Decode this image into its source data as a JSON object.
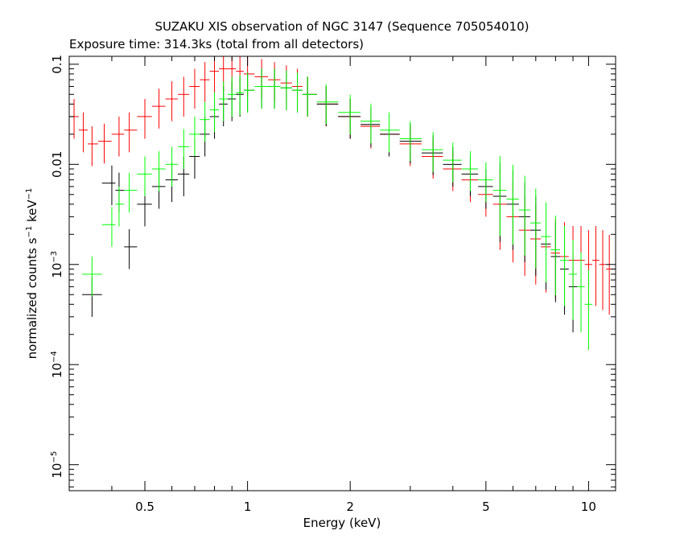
{
  "chart_data": {
    "type": "scatter",
    "title": "SUZAKU XIS observation of NGC 3147 (Sequence 705054010)",
    "subtitle": "Exposure time: 314.3ks (total from all detectors)",
    "xlabel": "Energy (keV)",
    "ylabel": "normalized counts s",
    "ylabel_sup1": "−1",
    "ylabel_mid": " keV",
    "ylabel_sup2": "−1",
    "x_scale": "log",
    "y_scale": "log",
    "xlim": [
      0.3,
      12
    ],
    "ylim": [
      5.5e-06,
      0.12
    ],
    "x_ticks": [
      {
        "value": 0.5,
        "label": "0.5"
      },
      {
        "value": 1,
        "label": "1"
      },
      {
        "value": 2,
        "label": "2"
      },
      {
        "value": 5,
        "label": "5"
      },
      {
        "value": 10,
        "label": "10"
      }
    ],
    "y_ticks": [
      {
        "value": 0.1,
        "base": "0.1",
        "exp": ""
      },
      {
        "value": 0.01,
        "base": "0.01",
        "exp": ""
      },
      {
        "value": 0.001,
        "base": "10",
        "exp": "−3"
      },
      {
        "value": 0.0001,
        "base": "10",
        "exp": "−4"
      },
      {
        "value": 1e-05,
        "base": "10",
        "exp": "−5"
      }
    ],
    "grid": false,
    "legend": "none",
    "series": [
      {
        "color": "#ff0000",
        "x": [
          0.31,
          0.33,
          0.35,
          0.38,
          0.42,
          0.45,
          0.5,
          0.55,
          0.6,
          0.65,
          0.7,
          0.75,
          0.8,
          0.85,
          0.9,
          0.95,
          1.0,
          1.1,
          1.2,
          1.3,
          1.4,
          1.5,
          1.7,
          2.0,
          2.3,
          2.6,
          3.0,
          3.5,
          4.0,
          4.5,
          5.0,
          5.5,
          6.0,
          6.5,
          7.0,
          7.5,
          8.0,
          8.5,
          9.0,
          9.5,
          10.0,
          10.5,
          11.0,
          11.5,
          12.0
        ],
        "y": [
          0.03,
          0.022,
          0.016,
          0.017,
          0.02,
          0.022,
          0.03,
          0.038,
          0.045,
          0.05,
          0.06,
          0.07,
          0.085,
          0.09,
          0.09,
          0.085,
          0.08,
          0.075,
          0.07,
          0.065,
          0.06,
          0.05,
          0.04,
          0.03,
          0.024,
          0.02,
          0.016,
          0.012,
          0.009,
          0.007,
          0.005,
          0.004,
          0.003,
          0.0022,
          0.0018,
          0.0015,
          0.0013,
          0.0012,
          0.0011,
          0.0011,
          0.001,
          0.0011,
          0.001,
          0.0009,
          0.0009
        ]
      },
      {
        "color": "#000000",
        "x": [
          0.35,
          0.4,
          0.42,
          0.45,
          0.5,
          0.55,
          0.6,
          0.65,
          0.7,
          0.75,
          0.8,
          0.85,
          0.9,
          0.95,
          1.0,
          1.1,
          1.2,
          1.3,
          1.4,
          1.5,
          1.7,
          2.0,
          2.3,
          2.6,
          3.0,
          3.5,
          4.0,
          4.5,
          5.0,
          5.5,
          6.0,
          6.5,
          7.0,
          7.5,
          8.0,
          8.5,
          9.0
        ],
        "y": [
          0.0005,
          0.0065,
          0.0055,
          0.0015,
          0.004,
          0.006,
          0.007,
          0.008,
          0.012,
          0.02,
          0.03,
          0.04,
          0.045,
          0.05,
          0.055,
          0.06,
          0.06,
          0.058,
          0.055,
          0.05,
          0.04,
          0.03,
          0.025,
          0.02,
          0.017,
          0.013,
          0.01,
          0.008,
          0.006,
          0.0048,
          0.004,
          0.003,
          0.0022,
          0.0016,
          0.0012,
          0.0009,
          0.0006
        ]
      },
      {
        "color": "#00ff00",
        "x": [
          0.35,
          0.4,
          0.42,
          0.45,
          0.5,
          0.55,
          0.6,
          0.65,
          0.7,
          0.75,
          0.8,
          0.85,
          0.9,
          0.95,
          1.0,
          1.1,
          1.2,
          1.3,
          1.4,
          1.5,
          1.7,
          2.0,
          2.3,
          2.6,
          3.0,
          3.5,
          4.0,
          4.5,
          5.0,
          5.5,
          6.0,
          6.5,
          7.0,
          7.5,
          8.0,
          8.5,
          9.0,
          9.5,
          10.0
        ],
        "y": [
          0.0008,
          0.0025,
          0.004,
          0.0055,
          0.008,
          0.009,
          0.01,
          0.015,
          0.02,
          0.028,
          0.035,
          0.045,
          0.05,
          0.052,
          0.055,
          0.06,
          0.06,
          0.058,
          0.055,
          0.05,
          0.042,
          0.033,
          0.027,
          0.022,
          0.018,
          0.014,
          0.011,
          0.009,
          0.007,
          0.0055,
          0.0045,
          0.0035,
          0.0026,
          0.0019,
          0.0014,
          0.0011,
          0.0008,
          0.0006,
          0.0004
        ]
      }
    ]
  }
}
